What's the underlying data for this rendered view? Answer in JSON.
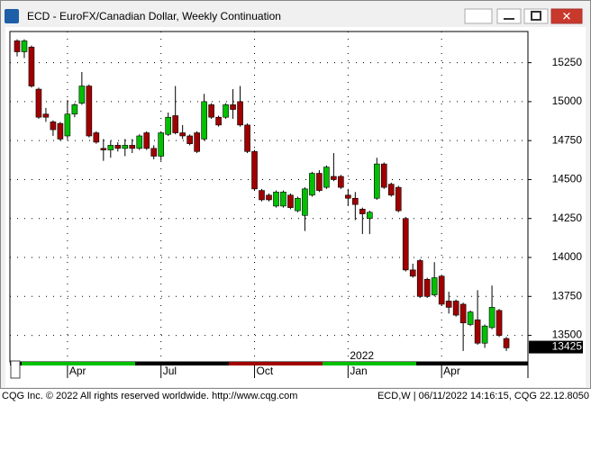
{
  "window_title": "ECD - EuroFX/Canadian Dollar, Weekly Continuation",
  "chart_data": {
    "type": "candlestick",
    "up_color": "#00c000",
    "down_color": "#a00000",
    "ylim": [
      13330,
      15450
    ],
    "yticks": [
      13500,
      13750,
      14000,
      14250,
      14500,
      14750,
      15000,
      15250
    ],
    "xlim": [
      -1,
      71
    ],
    "xticks": [
      {
        "value": 7,
        "label": "Apr"
      },
      {
        "value": 20,
        "label": "Jul"
      },
      {
        "value": 33,
        "label": "Oct"
      },
      {
        "value": 46,
        "label": "Jan"
      },
      {
        "value": 59,
        "label": "Apr"
      }
    ],
    "year_label": {
      "value": 46,
      "label": "2022"
    },
    "grid": true,
    "last_price": 13425,
    "open": [
      15390,
      15320,
      15350,
      15080,
      14920,
      14870,
      14860,
      14780,
      14920,
      14990,
      15100,
      14800,
      14700,
      14690,
      14720,
      14700,
      14720,
      14700,
      14800,
      14700,
      14650,
      14790,
      14910,
      14800,
      14780,
      14800,
      14760,
      14980,
      14900,
      14900,
      14980,
      15000,
      14850,
      14680,
      14430,
      14400,
      14330,
      14330,
      14400,
      14300,
      14270,
      14400,
      14540,
      14450,
      14520,
      14520,
      14400,
      14380,
      14310,
      14250,
      14380,
      14600,
      14470,
      14450,
      14250,
      13920,
      13980,
      13860,
      13760,
      13880,
      13720,
      13720,
      13700,
      13570,
      13600,
      13450,
      13550,
      13660,
      13480
    ],
    "high": [
      15400,
      15400,
      15360,
      15090,
      14960,
      14880,
      14870,
      15010,
      14990,
      15190,
      15110,
      14810,
      14760,
      14750,
      14740,
      14760,
      14760,
      14790,
      14810,
      14720,
      14810,
      14930,
      15100,
      14850,
      14790,
      14810,
      15050,
      14990,
      14910,
      14990,
      15080,
      15100,
      14860,
      14690,
      14440,
      14410,
      14430,
      14430,
      14410,
      14390,
      14450,
      14550,
      14560,
      14590,
      14670,
      14530,
      14440,
      14420,
      14320,
      14300,
      14640,
      14610,
      14480,
      14460,
      14260,
      13960,
      13990,
      13870,
      13970,
      13890,
      13780,
      13730,
      13710,
      13660,
      13790,
      13570,
      13820,
      13670,
      13490
    ],
    "low": [
      15290,
      15280,
      15090,
      14890,
      14870,
      14780,
      14750,
      14760,
      14900,
      14980,
      14770,
      14730,
      14620,
      14640,
      14680,
      14650,
      14670,
      14690,
      14690,
      14630,
      14620,
      14780,
      14790,
      14760,
      14720,
      14670,
      14750,
      14890,
      14840,
      14890,
      14890,
      14840,
      14670,
      14430,
      14360,
      14360,
      14320,
      14320,
      14310,
      14290,
      14170,
      14390,
      14420,
      14440,
      14490,
      14440,
      14330,
      14240,
      14150,
      14150,
      14370,
      14440,
      14390,
      14290,
      13910,
      13870,
      13740,
      13740,
      13750,
      13690,
      13640,
      13620,
      13400,
      13560,
      13440,
      13420,
      13540,
      13490,
      13400
    ],
    "close": [
      15320,
      15390,
      15100,
      14900,
      14900,
      14820,
      14760,
      14920,
      14980,
      15100,
      14780,
      14740,
      14690,
      14720,
      14700,
      14720,
      14700,
      14780,
      14700,
      14650,
      14800,
      14900,
      14800,
      14780,
      14730,
      14680,
      15000,
      14900,
      14850,
      14980,
      14950,
      14850,
      14680,
      14440,
      14370,
      14370,
      14420,
      14420,
      14320,
      14380,
      14440,
      14540,
      14430,
      14580,
      14500,
      14450,
      14380,
      14340,
      14280,
      14290,
      14600,
      14450,
      14400,
      14300,
      13920,
      13880,
      13750,
      13750,
      13870,
      13700,
      13680,
      13630,
      13580,
      13650,
      13450,
      13560,
      13680,
      13500,
      13420
    ]
  },
  "footer_left": "CQG Inc. © 2022 All rights reserved worldwide. http://www.cqg.com",
  "footer_right": "ECD,W | 06/11/2022 14:16:15, CQG 22.12.8050"
}
